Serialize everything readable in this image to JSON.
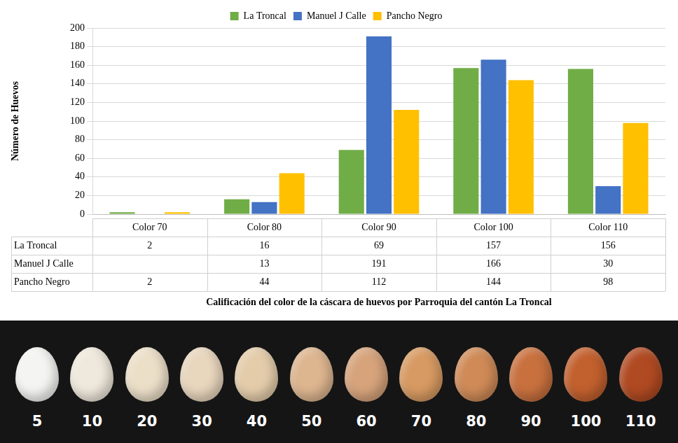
{
  "chart_data": {
    "type": "bar",
    "x_label": "Calificación del color de la cáscara de huevos por Parroquia del cantón La Troncal",
    "y_label": "Número de Huevos",
    "categories": [
      "Color 70",
      "Color 80",
      "Color 90",
      "Color 100",
      "Color 110"
    ],
    "series": [
      {
        "name": "La Troncal",
        "color": "#70AD47",
        "values": [
          2,
          16,
          69,
          157,
          156
        ]
      },
      {
        "name": "Manuel J Calle",
        "color": "#4472C4",
        "values": [
          null,
          13,
          191,
          166,
          30
        ]
      },
      {
        "name": "Pancho Negro",
        "color": "#FFC000",
        "values": [
          2,
          44,
          112,
          144,
          98
        ]
      }
    ],
    "ylim": [
      0,
      200
    ],
    "yticks": [
      0,
      20,
      40,
      60,
      80,
      100,
      120,
      140,
      160,
      180,
      200
    ],
    "grid": true,
    "legend": "top"
  },
  "color_scale": {
    "labels": [
      5,
      10,
      20,
      30,
      40,
      50,
      60,
      70,
      80,
      90,
      100,
      110
    ],
    "colors": [
      "#f4f4f2",
      "#efe8dc",
      "#ecdfc8",
      "#e8d6bd",
      "#e4ccaa",
      "#ddb58f",
      "#d6a37b",
      "#d79a62",
      "#cf8a57",
      "#c8703e",
      "#c2602e",
      "#b04a22"
    ]
  }
}
